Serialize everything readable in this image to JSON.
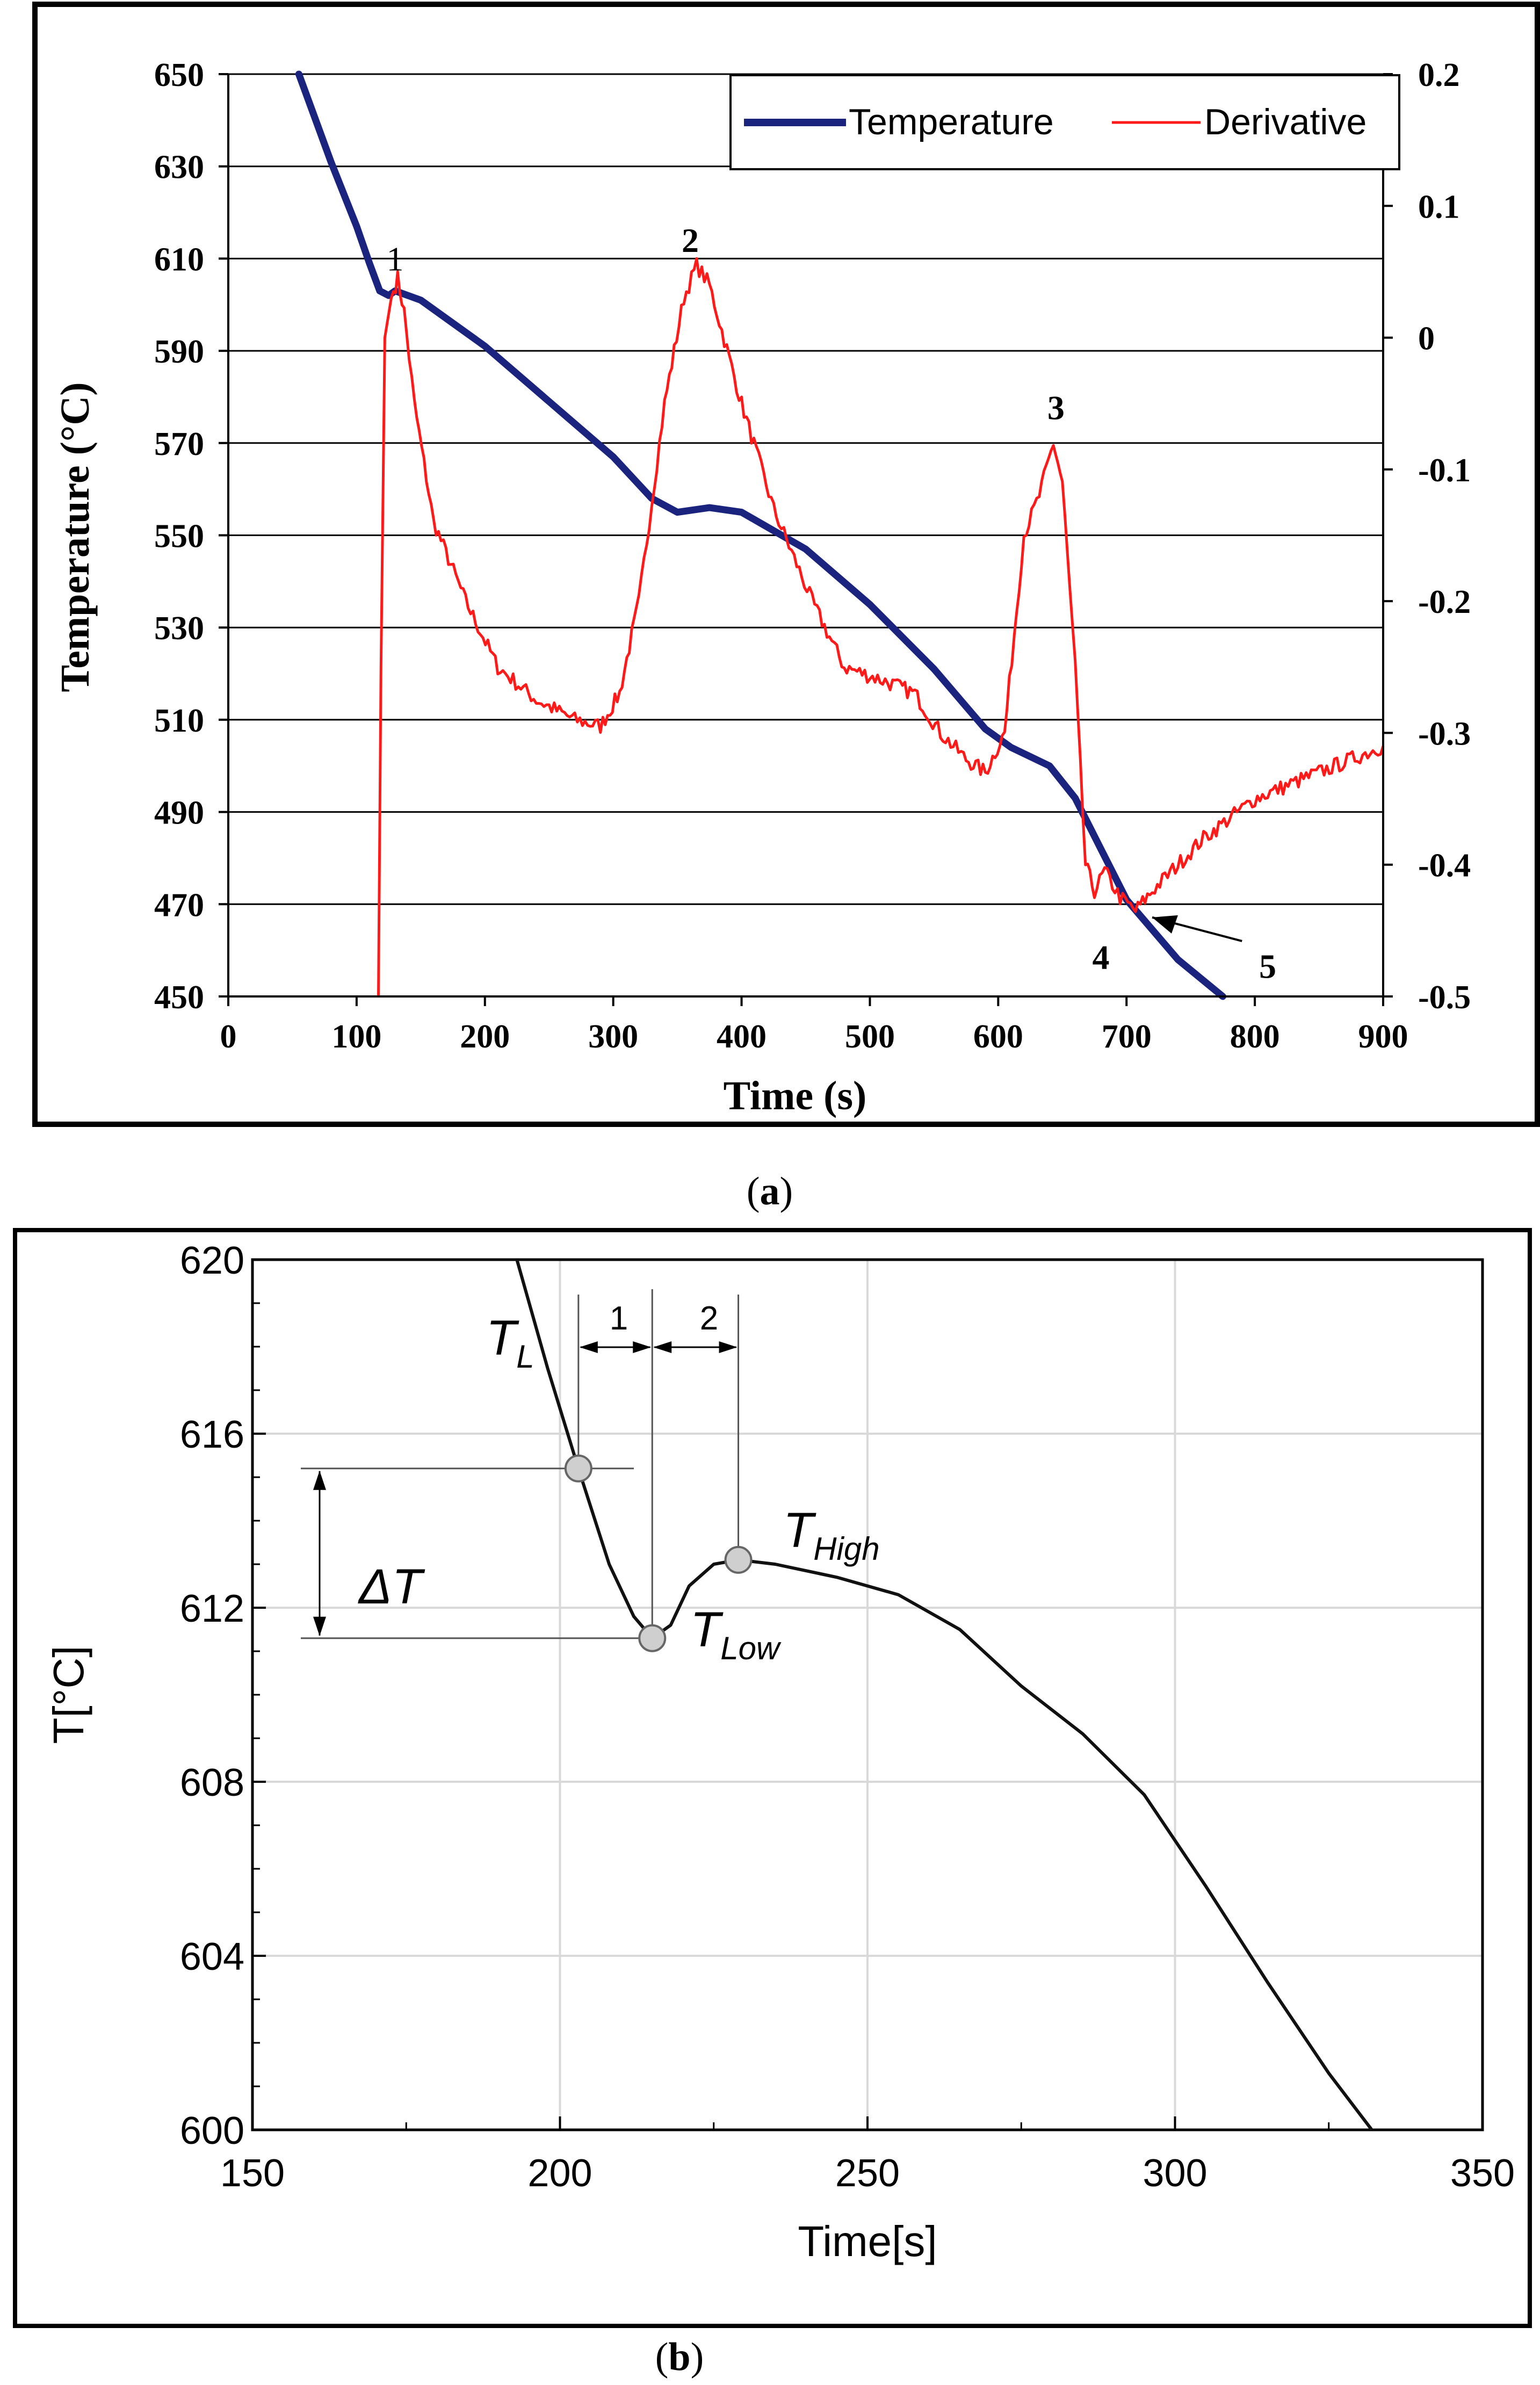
{
  "chart_data": [
    {
      "type": "line",
      "title": "",
      "caption": "(a)",
      "caption_letter": "a",
      "xlabel": "Time (s)",
      "ylabel": "Temperature (°C)",
      "xlim": [
        0,
        900
      ],
      "ylim": [
        450,
        650
      ],
      "y2lim": [
        -0.5,
        0.2
      ],
      "xticks": [
        "0",
        "100",
        "200",
        "300",
        "400",
        "500",
        "600",
        "700",
        "800",
        "900"
      ],
      "yticks": [
        "450",
        "470",
        "490",
        "510",
        "530",
        "550",
        "570",
        "590",
        "610",
        "630",
        "650"
      ],
      "y2ticks": [
        "-0.5",
        "-0.4",
        "-0.3",
        "-0.2",
        "-0.1",
        "0",
        "0.1",
        "0.2"
      ],
      "grid": "horizontal",
      "legend": "top-right",
      "series": [
        {
          "name": "Temperature",
          "color": "#1a237e",
          "axis": "left",
          "x": [
            55,
            80,
            100,
            110,
            118,
            125,
            130,
            150,
            200,
            250,
            300,
            330,
            350,
            375,
            400,
            450,
            500,
            550,
            590,
            610,
            640,
            660,
            680,
            700,
            740,
            775
          ],
          "y": [
            650,
            631,
            617,
            609,
            603,
            602,
            603,
            601,
            591,
            579,
            567,
            558,
            555,
            556,
            555,
            547,
            535,
            521,
            508,
            504,
            500,
            493,
            482,
            471,
            458,
            450
          ]
        },
        {
          "name": "Derivative",
          "color": "#ff1a1a",
          "axis": "right",
          "x": [
            117,
            119,
            122,
            127,
            132,
            137,
            145,
            160,
            185,
            210,
            240,
            270,
            290,
            305,
            320,
            340,
            355,
            365,
            375,
            400,
            425,
            455,
            480,
            510,
            535,
            555,
            575,
            590,
            605,
            620,
            632,
            643,
            650,
            660,
            668,
            675,
            683,
            695,
            707,
            720,
            760,
            800,
            850,
            900
          ],
          "y": [
            -0.5,
            -0.25,
            0.0,
            0.03,
            0.045,
            0.02,
            -0.05,
            -0.14,
            -0.2,
            -0.25,
            -0.275,
            -0.29,
            -0.295,
            -0.27,
            -0.2,
            -0.05,
            0.03,
            0.055,
            0.04,
            -0.05,
            -0.13,
            -0.2,
            -0.25,
            -0.26,
            -0.27,
            -0.3,
            -0.32,
            -0.33,
            -0.3,
            -0.15,
            -0.12,
            -0.08,
            -0.11,
            -0.25,
            -0.4,
            -0.42,
            -0.405,
            -0.425,
            -0.435,
            -0.42,
            -0.38,
            -0.35,
            -0.33,
            -0.31
          ]
        }
      ],
      "annotations": [
        {
          "text": "1",
          "x": 130,
          "y2": 0.06
        },
        {
          "text": "2",
          "x": 360,
          "y2": 0.074
        },
        {
          "text": "3",
          "x": 645,
          "y2": -0.053
        },
        {
          "text": "4",
          "x": 680,
          "y2": -0.47
        },
        {
          "text": "5",
          "x": 810,
          "y2": -0.477
        }
      ]
    },
    {
      "type": "line",
      "title": "",
      "caption": "(b)",
      "caption_letter": "b",
      "xlabel": "Time[s]",
      "ylabel": "T[°C]",
      "xlim": [
        150,
        350
      ],
      "ylim": [
        600,
        620
      ],
      "xticks": [
        "150",
        "200",
        "250",
        "300",
        "350"
      ],
      "yticks": [
        "600",
        "604",
        "608",
        "612",
        "616",
        "620"
      ],
      "grid": "both",
      "series": [
        {
          "name": "Cooling curve",
          "color": "#111111",
          "x": [
            193,
            198,
            203,
            208,
            212,
            215,
            218,
            221,
            225,
            229,
            235,
            245,
            255,
            265,
            275,
            285,
            295,
            305,
            315,
            325,
            332
          ],
          "y": [
            620,
            617.5,
            615.2,
            613.0,
            611.8,
            611.3,
            611.6,
            612.5,
            613.0,
            613.1,
            613.0,
            612.7,
            612.3,
            611.5,
            610.2,
            609.1,
            607.7,
            605.6,
            603.4,
            601.3,
            600
          ]
        }
      ],
      "points": [
        {
          "label": "L",
          "x": 203,
          "y": 615.2
        },
        {
          "label": "Low",
          "x": 215,
          "y": 611.3
        },
        {
          "label": "High",
          "x": 229,
          "y": 613.1
        }
      ],
      "annotations": [
        {
          "text": "T",
          "subscript": "L"
        },
        {
          "text": "T",
          "subscript": "Low"
        },
        {
          "text": "T",
          "subscript": "High"
        },
        {
          "text": "ΔT"
        },
        {
          "text": "1"
        },
        {
          "text": "2"
        }
      ]
    }
  ]
}
